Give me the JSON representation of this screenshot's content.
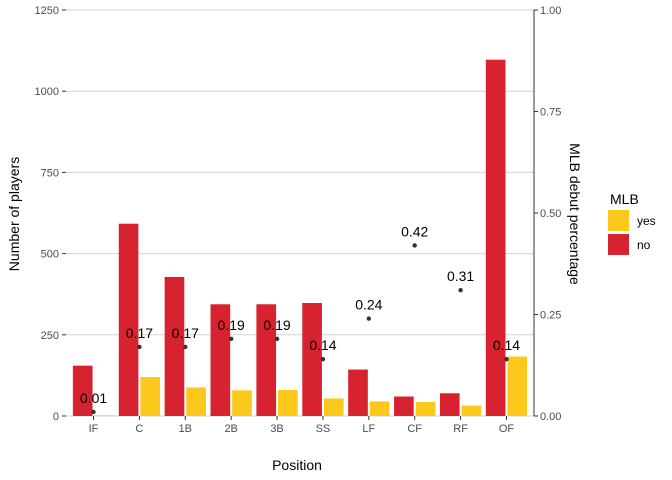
{
  "chart_data": {
    "type": "bar",
    "xlabel": "Position",
    "ylabel": "Number of players",
    "y2label": "MLB debut percentage",
    "categories": [
      "IF",
      "C",
      "1B",
      "2B",
      "3B",
      "SS",
      "LF",
      "CF",
      "RF",
      "OF"
    ],
    "series": [
      {
        "name": "no",
        "color": "#d7232f",
        "values": [
          155,
          592,
          428,
          344,
          344,
          348,
          143,
          60,
          70,
          1097
        ]
      },
      {
        "name": "yes",
        "color": "#fcc81b",
        "values": [
          2,
          120,
          88,
          79,
          80,
          54,
          45,
          43,
          32,
          183
        ]
      }
    ],
    "debut_pct": {
      "values": [
        0.01,
        0.17,
        0.17,
        0.19,
        0.19,
        0.14,
        0.24,
        0.42,
        0.31,
        0.14
      ],
      "labels": [
        "0.01",
        "0.17",
        "0.17",
        "0.19",
        "0.19",
        "0.14",
        "0.24",
        "0.42",
        "0.31",
        "0.14"
      ]
    },
    "ylim": [
      0,
      1250
    ],
    "yticks": [
      0,
      250,
      500,
      750,
      1000,
      1250
    ],
    "ytick_labels": [
      "0",
      "250",
      "500",
      "750",
      "1000",
      "1250"
    ],
    "y2lim": [
      0,
      1
    ],
    "y2ticks": [
      0,
      0.25,
      0.5,
      0.75,
      1.0
    ],
    "y2tick_labels": [
      "0.00",
      "0.25",
      "0.50",
      "0.75",
      "1.00"
    ],
    "legend": {
      "title": "MLB",
      "entries": [
        "yes",
        "no"
      ],
      "position": "right"
    },
    "grid": true
  }
}
